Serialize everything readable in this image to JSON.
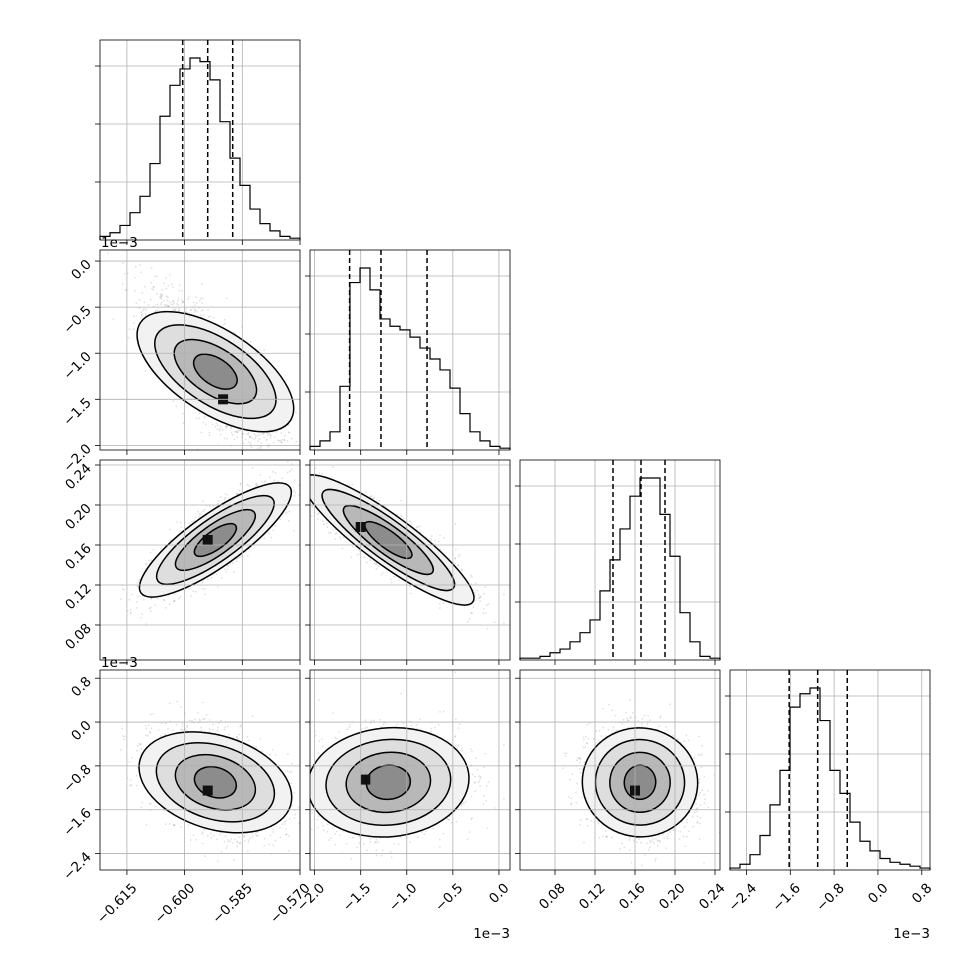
{
  "chart_data": {
    "type": "corner",
    "parameters": [
      {
        "range": [
          -0.622,
          -0.57
        ],
        "ticks": [
          -0.615,
          -0.6,
          -0.585,
          -0.57
        ],
        "tick_labels": [
          "−0.615",
          "−0.600",
          "−0.585",
          "−0.570"
        ],
        "offset_label": ""
      },
      {
        "range": [
          -2.05,
          0.12
        ],
        "ticks": [
          -2.0,
          -1.5,
          -1.0,
          -0.5,
          0.0
        ],
        "tick_labels": [
          "−2.0",
          "−1.5",
          "−1.0",
          "−0.5",
          "0.0"
        ],
        "offset_label": "1e−3"
      },
      {
        "range": [
          0.045,
          0.245
        ],
        "ticks": [
          0.08,
          0.12,
          0.16,
          0.2,
          0.24
        ],
        "tick_labels": [
          "0.08",
          "0.12",
          "0.16",
          "0.20",
          "0.24"
        ],
        "offset_label": ""
      },
      {
        "range": [
          -2.7,
          0.95
        ],
        "ticks": [
          -2.4,
          -1.6,
          -0.8,
          0.0,
          0.8
        ],
        "tick_labels": [
          "−2.4",
          "−1.6",
          "−0.8",
          "0.0",
          "0.8"
        ],
        "offset_label": "1e−3"
      }
    ],
    "x_offset_labels": [
      "",
      "1e−3",
      "",
      "1e−3"
    ],
    "y_offset_labels": [
      "",
      "1e−3",
      "",
      "1e−3"
    ],
    "marginals": [
      {
        "quantiles": [
          -0.6005,
          -0.594,
          -0.5875
        ],
        "counts": [
          0.02,
          0.04,
          0.08,
          0.15,
          0.24,
          0.42,
          0.68,
          0.85,
          0.94,
          1.0,
          0.98,
          0.88,
          0.65,
          0.45,
          0.3,
          0.17,
          0.09,
          0.05,
          0.02,
          0.01
        ]
      },
      {
        "quantiles": [
          -1.62,
          -1.28,
          -0.78
        ],
        "counts": [
          0.02,
          0.05,
          0.1,
          0.35,
          0.92,
          1.0,
          0.88,
          0.72,
          0.68,
          0.66,
          0.62,
          0.56,
          0.5,
          0.44,
          0.34,
          0.2,
          0.1,
          0.05,
          0.02,
          0.01
        ]
      },
      {
        "quantiles": [
          0.138,
          0.166,
          0.19
        ],
        "counts": [
          0.01,
          0.01,
          0.02,
          0.04,
          0.06,
          0.1,
          0.15,
          0.22,
          0.38,
          0.55,
          0.72,
          0.9,
          1.0,
          1.0,
          0.8,
          0.57,
          0.26,
          0.1,
          0.02,
          0.01
        ]
      },
      {
        "quantiles": [
          -1.62,
          -1.1,
          -0.56
        ],
        "counts": [
          0.01,
          0.03,
          0.08,
          0.18,
          0.34,
          0.52,
          0.85,
          0.92,
          0.95,
          0.78,
          0.52,
          0.4,
          0.25,
          0.15,
          0.1,
          0.06,
          0.04,
          0.03,
          0.02,
          0.01
        ]
      }
    ],
    "pairs": [
      {
        "x": 0,
        "y": 1,
        "mean": [
          -0.592,
          -1.2
        ],
        "sd": [
          0.008,
          0.38
        ],
        "rho": -0.75,
        "mode": [
          -0.59,
          -1.5
        ]
      },
      {
        "x": 0,
        "y": 2,
        "mean": [
          -0.592,
          0.165
        ],
        "sd": [
          0.008,
          0.025
        ],
        "rho": 0.82,
        "mode": [
          -0.594,
          0.165
        ]
      },
      {
        "x": 1,
        "y": 2,
        "mean": [
          -1.2,
          0.165
        ],
        "sd": [
          0.38,
          0.025
        ],
        "rho": -0.85,
        "mode": [
          -1.5,
          0.178
        ]
      },
      {
        "x": 0,
        "y": 3,
        "mean": [
          -0.592,
          -1.1
        ],
        "sd": [
          0.008,
          0.45
        ],
        "rho": -0.35,
        "mode": [
          -0.594,
          -1.25
        ]
      },
      {
        "x": 1,
        "y": 3,
        "mean": [
          -1.2,
          -1.1
        ],
        "sd": [
          0.38,
          0.45
        ],
        "rho": 0.1,
        "mode": [
          -1.45,
          -1.05
        ]
      },
      {
        "x": 2,
        "y": 3,
        "mean": [
          0.165,
          -1.1
        ],
        "sd": [
          0.025,
          0.45
        ],
        "rho": -0.1,
        "mode": [
          0.16,
          -1.25
        ]
      }
    ],
    "grid": true
  }
}
